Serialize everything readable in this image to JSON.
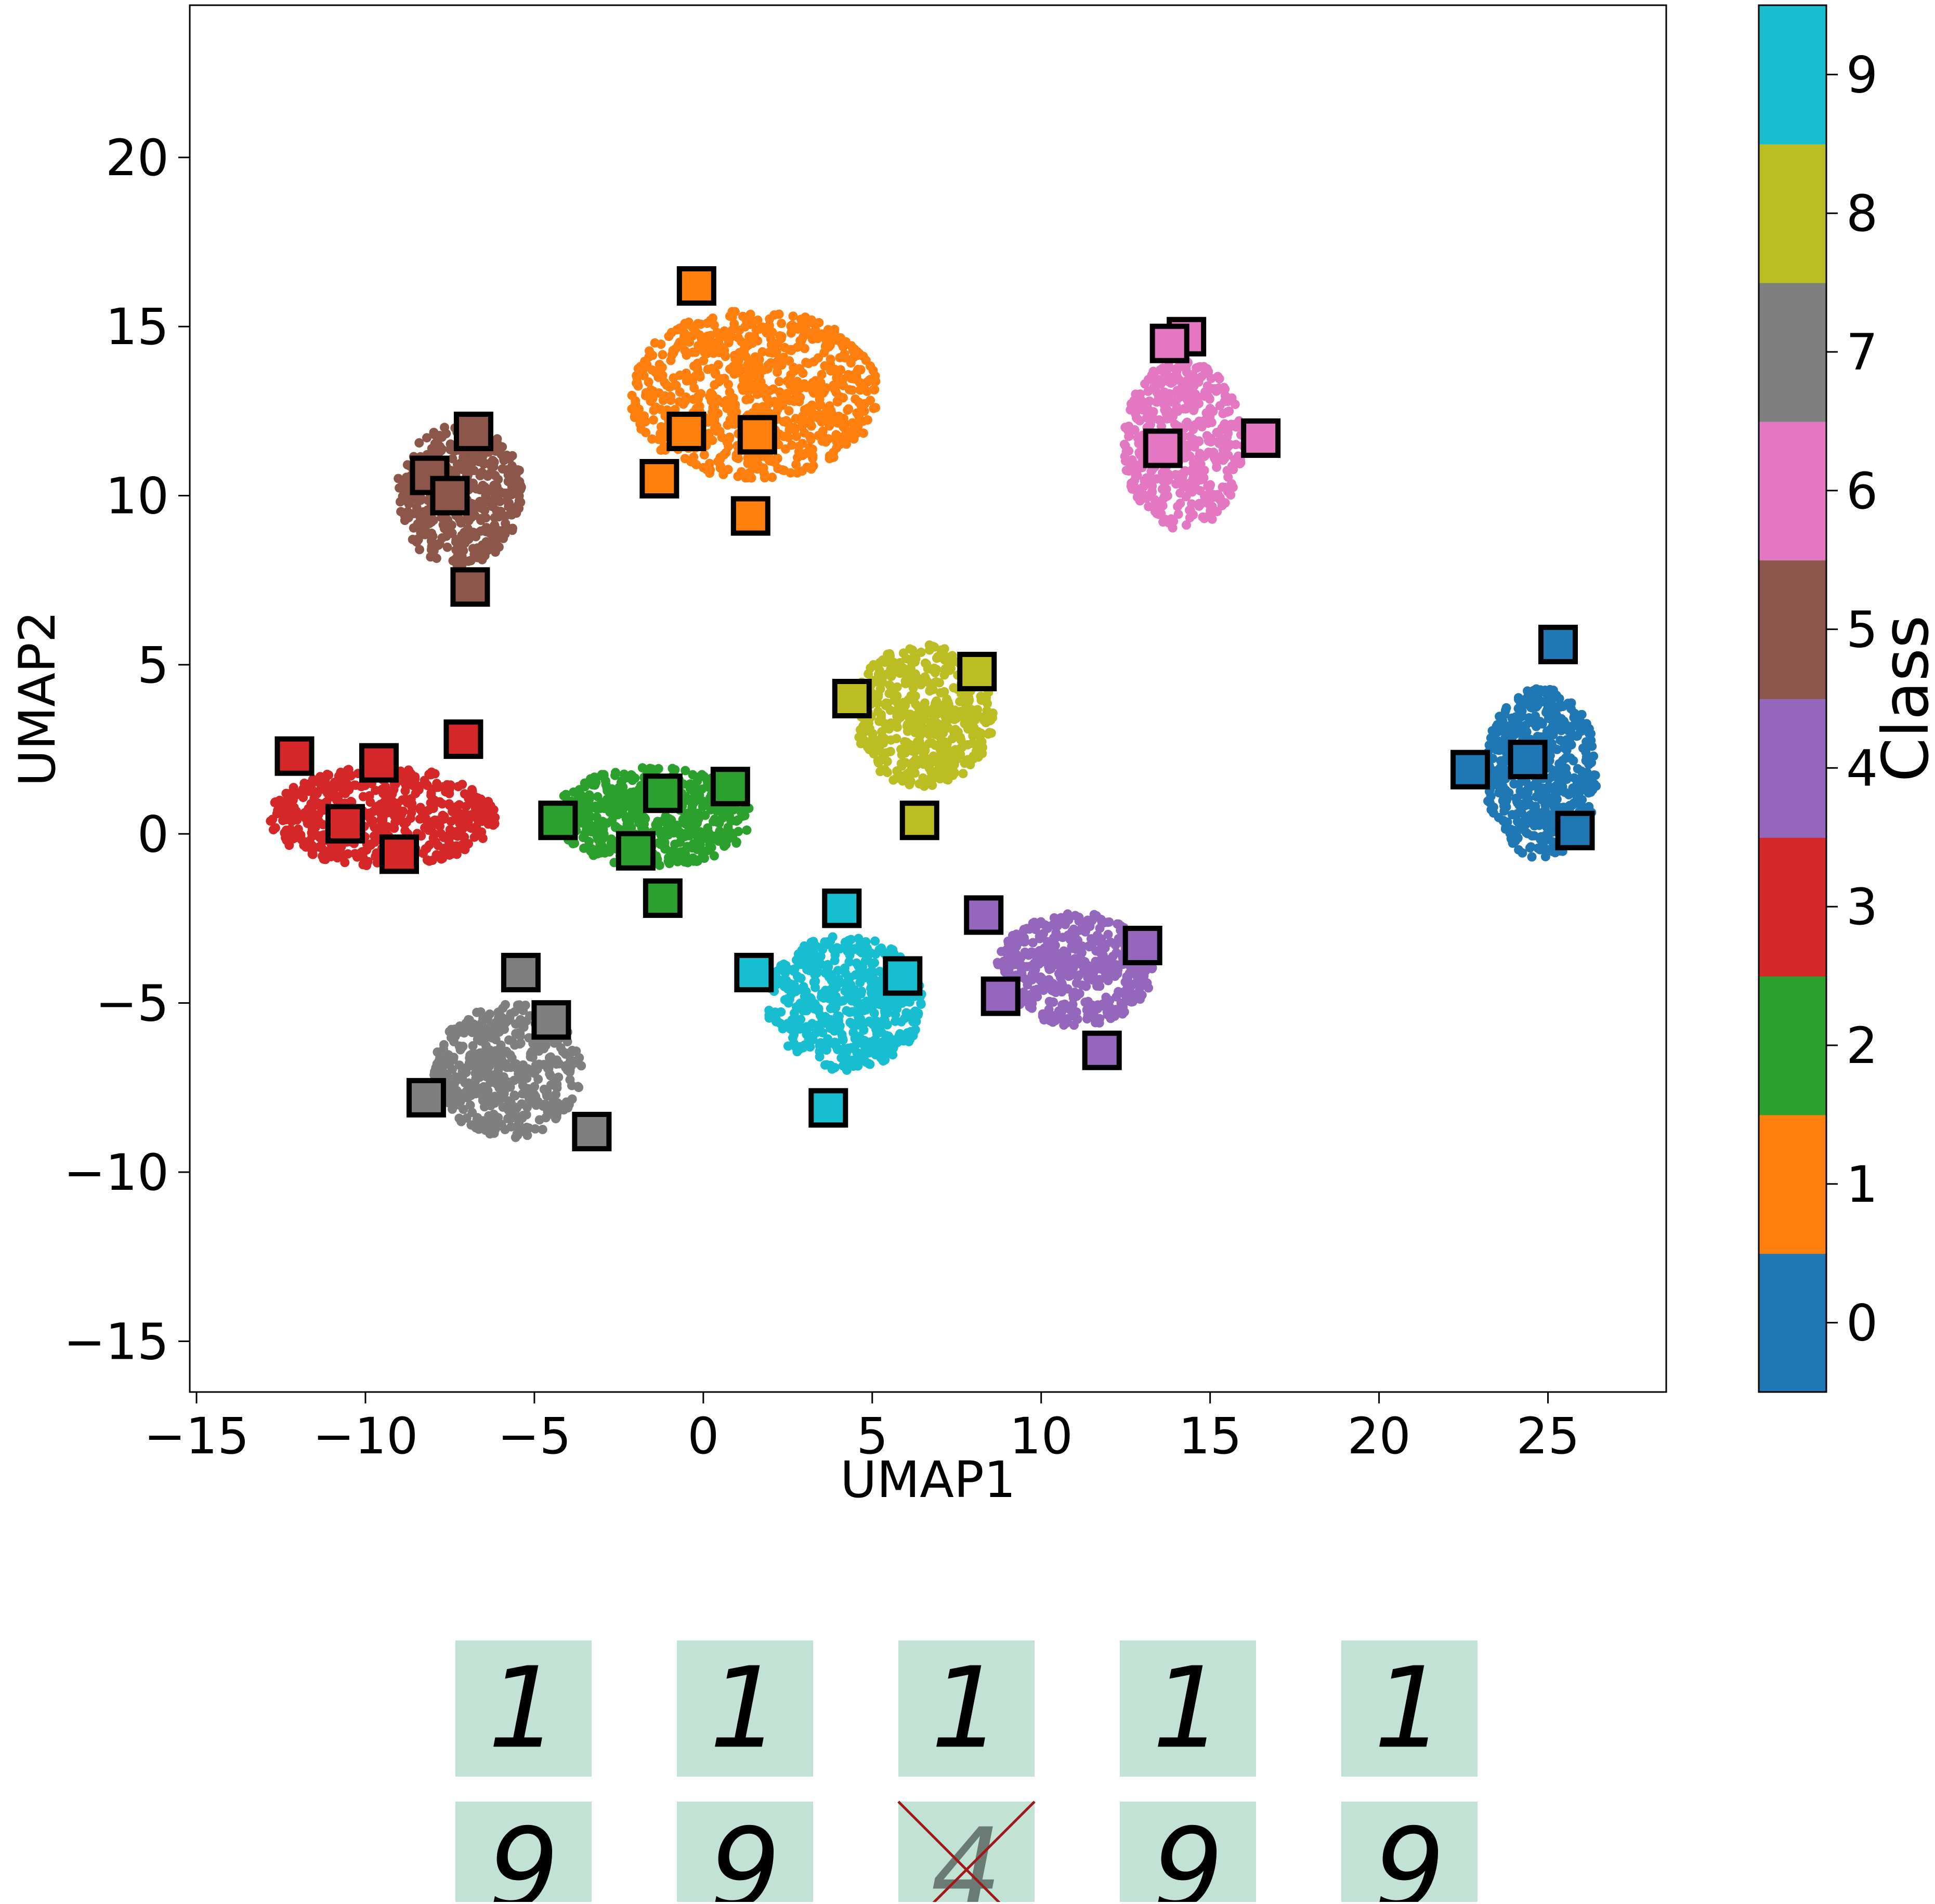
{
  "chart_data": {
    "type": "scatter",
    "title": "",
    "xlabel": "UMAP1",
    "ylabel": "UMAP2",
    "xlim": [
      -15.2,
      28.5
    ],
    "ylim": [
      -16.5,
      24.5
    ],
    "xticks": [
      -15,
      -10,
      -5,
      0,
      5,
      10,
      15,
      20,
      25
    ],
    "yticks": [
      -15,
      -10,
      -5,
      0,
      5,
      10,
      15,
      20
    ],
    "grid": false,
    "colorbar": {
      "label": "Class",
      "ticks": [
        "0",
        "1",
        "2",
        "3",
        "4",
        "5",
        "6",
        "7",
        "8",
        "9"
      ],
      "colors": [
        "#1f77b4",
        "#ff7f0e",
        "#2ca02c",
        "#d62728",
        "#9467bd",
        "#8c564b",
        "#e377c2",
        "#7f7f7f",
        "#bcbd22",
        "#17becf"
      ]
    },
    "clusters": [
      {
        "class": 0,
        "center": [
          24.8,
          1.8
        ],
        "spread": [
          1.6,
          2.4
        ],
        "count": 520
      },
      {
        "class": 1,
        "center": [
          1.5,
          13.0
        ],
        "spread": [
          3.5,
          2.4
        ],
        "count": 780
      },
      {
        "class": 2,
        "center": [
          -1.5,
          0.5
        ],
        "spread": [
          2.8,
          1.4
        ],
        "count": 560
      },
      {
        "class": 3,
        "center": [
          -9.5,
          0.5
        ],
        "spread": [
          3.2,
          1.4
        ],
        "count": 560
      },
      {
        "class": 4,
        "center": [
          11.0,
          -4.0
        ],
        "spread": [
          2.2,
          1.6
        ],
        "count": 460
      },
      {
        "class": 5,
        "center": [
          -7.2,
          10.0
        ],
        "spread": [
          1.8,
          2.0
        ],
        "count": 460
      },
      {
        "class": 6,
        "center": [
          14.2,
          11.5
        ],
        "spread": [
          1.7,
          2.4
        ],
        "count": 480
      },
      {
        "class": 7,
        "center": [
          -5.8,
          -7.0
        ],
        "spread": [
          2.1,
          1.9
        ],
        "count": 500
      },
      {
        "class": 8,
        "center": [
          6.5,
          3.5
        ],
        "spread": [
          2.0,
          2.0
        ],
        "count": 500
      },
      {
        "class": 9,
        "center": [
          4.2,
          -5.0
        ],
        "spread": [
          2.2,
          1.9
        ],
        "count": 520
      }
    ],
    "highlighted_points": [
      {
        "class": 0,
        "x": 25.3,
        "y": 5.6
      },
      {
        "class": 0,
        "x": 22.7,
        "y": 1.9
      },
      {
        "class": 0,
        "x": 24.4,
        "y": 2.2
      },
      {
        "class": 0,
        "x": 25.8,
        "y": 0.1
      },
      {
        "class": 1,
        "x": -0.2,
        "y": 16.2
      },
      {
        "class": 1,
        "x": -0.5,
        "y": 11.9
      },
      {
        "class": 1,
        "x": 1.6,
        "y": 11.8
      },
      {
        "class": 1,
        "x": -1.3,
        "y": 10.5
      },
      {
        "class": 1,
        "x": 1.4,
        "y": 9.4
      },
      {
        "class": 2,
        "x": 0.8,
        "y": 1.4
      },
      {
        "class": 2,
        "x": -1.2,
        "y": 1.2
      },
      {
        "class": 2,
        "x": -4.3,
        "y": 0.4
      },
      {
        "class": 2,
        "x": -2.0,
        "y": -0.5
      },
      {
        "class": 2,
        "x": -1.2,
        "y": -1.9
      },
      {
        "class": 3,
        "x": -12.1,
        "y": 2.3
      },
      {
        "class": 3,
        "x": -9.6,
        "y": 2.1
      },
      {
        "class": 3,
        "x": -7.1,
        "y": 2.8
      },
      {
        "class": 3,
        "x": -10.6,
        "y": 0.3
      },
      {
        "class": 3,
        "x": -9.0,
        "y": -0.6
      },
      {
        "class": 4,
        "x": 8.3,
        "y": -2.4
      },
      {
        "class": 4,
        "x": 13.0,
        "y": -3.3
      },
      {
        "class": 4,
        "x": 8.8,
        "y": -4.8
      },
      {
        "class": 4,
        "x": 11.8,
        "y": -6.4
      },
      {
        "class": 5,
        "x": -6.8,
        "y": 11.9
      },
      {
        "class": 5,
        "x": -8.1,
        "y": 10.6
      },
      {
        "class": 5,
        "x": -7.5,
        "y": 10.0
      },
      {
        "class": 5,
        "x": -6.9,
        "y": 7.3
      },
      {
        "class": 6,
        "x": 14.3,
        "y": 14.7
      },
      {
        "class": 6,
        "x": 13.8,
        "y": 14.5
      },
      {
        "class": 6,
        "x": 13.6,
        "y": 11.4
      },
      {
        "class": 6,
        "x": 16.5,
        "y": 11.7
      },
      {
        "class": 7,
        "x": -5.4,
        "y": -4.1
      },
      {
        "class": 7,
        "x": -4.5,
        "y": -5.5
      },
      {
        "class": 7,
        "x": -8.2,
        "y": -7.8
      },
      {
        "class": 7,
        "x": -3.3,
        "y": -8.8
      },
      {
        "class": 8,
        "x": 4.4,
        "y": 4.0
      },
      {
        "class": 8,
        "x": 8.1,
        "y": 4.8
      },
      {
        "class": 8,
        "x": 6.4,
        "y": 0.4
      },
      {
        "class": 9,
        "x": 4.1,
        "y": -2.2
      },
      {
        "class": 9,
        "x": 1.5,
        "y": -4.1
      },
      {
        "class": 9,
        "x": 5.9,
        "y": -4.2
      },
      {
        "class": 9,
        "x": 3.7,
        "y": -8.1
      }
    ],
    "thumbnails": [
      {
        "digit": "1",
        "crossed": false
      },
      {
        "digit": "1",
        "crossed": false
      },
      {
        "digit": "1",
        "crossed": false
      },
      {
        "digit": "1",
        "crossed": false
      },
      {
        "digit": "1",
        "crossed": false
      },
      {
        "digit": "9",
        "crossed": false
      },
      {
        "digit": "9",
        "crossed": false
      },
      {
        "digit": "4",
        "crossed": true
      },
      {
        "digit": "9",
        "crossed": false
      },
      {
        "digit": "9",
        "crossed": false
      }
    ]
  }
}
